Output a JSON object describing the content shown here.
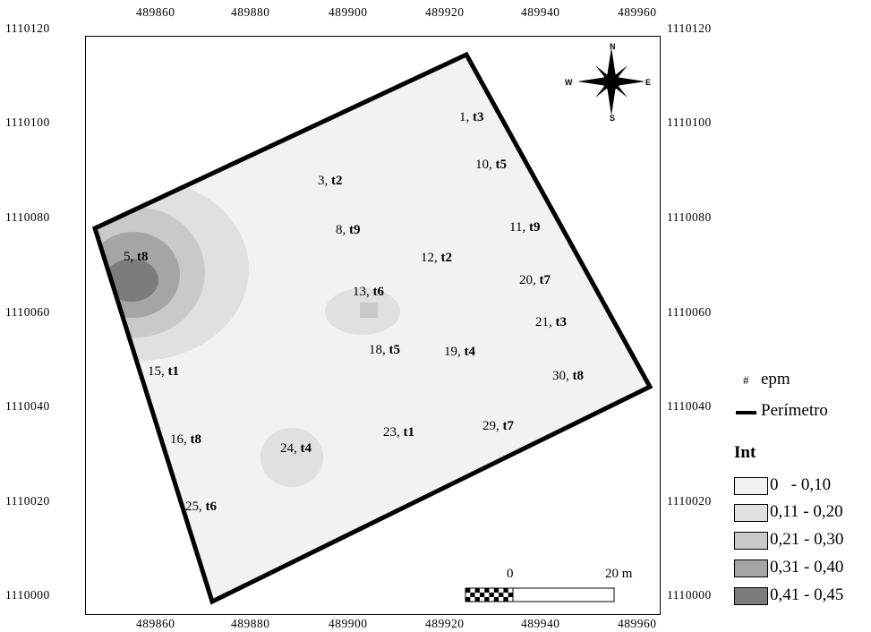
{
  "axes": {
    "x_ticks_top": [
      "489860",
      "489880",
      "489900",
      "489920",
      "489940",
      "489960"
    ],
    "x_ticks_bottom": [
      "489860",
      "489880",
      "489900",
      "489920",
      "489940",
      "489960"
    ],
    "y_ticks_left": [
      "1110120",
      "1110100",
      "1110080",
      "1110060",
      "1110040",
      "1110020",
      "1110000"
    ],
    "y_ticks_right": [
      "1110120",
      "1110100",
      "1110080",
      "1110060",
      "1110040",
      "1110020",
      "1110000"
    ]
  },
  "compass": {
    "n": "N",
    "s": "S",
    "e": "E",
    "w": "W"
  },
  "points": [
    {
      "num": "1,",
      "tag": "t3"
    },
    {
      "num": "10,",
      "tag": "t5"
    },
    {
      "num": "3,",
      "tag": "t2"
    },
    {
      "num": "11,",
      "tag": "t9"
    },
    {
      "num": "8,",
      "tag": "t9"
    },
    {
      "num": "12,",
      "tag": "t2"
    },
    {
      "num": "5,",
      "tag": "t8"
    },
    {
      "num": "20,",
      "tag": "t7"
    },
    {
      "num": "13,",
      "tag": "t6"
    },
    {
      "num": "21,",
      "tag": "t3"
    },
    {
      "num": "18,",
      "tag": "t5"
    },
    {
      "num": "19,",
      "tag": "t4"
    },
    {
      "num": "15,",
      "tag": "t1"
    },
    {
      "num": "30,",
      "tag": "t8"
    },
    {
      "num": "23,",
      "tag": "t1"
    },
    {
      "num": "29,",
      "tag": "t7"
    },
    {
      "num": "16,",
      "tag": "t8"
    },
    {
      "num": "24,",
      "tag": "t4"
    },
    {
      "num": "25,",
      "tag": "t6"
    }
  ],
  "scale_bar": {
    "start": "0",
    "end": "20 m"
  },
  "legend": {
    "point_symbol": "#",
    "point_label": "epm",
    "perimeter_label": "Perímetro",
    "title": "Int",
    "classes": [
      {
        "label": "0   - 0,10",
        "color": "#f2f2f2"
      },
      {
        "label": "0,11 - 0,20",
        "color": "#e0e0e0"
      },
      {
        "label": "0,21 - 0,30",
        "color": "#c9c9c9"
      },
      {
        "label": "0,31 - 0,40",
        "color": "#a5a5a5"
      },
      {
        "label": "0,41 - 0,45",
        "color": "#7c7c7c"
      }
    ]
  }
}
